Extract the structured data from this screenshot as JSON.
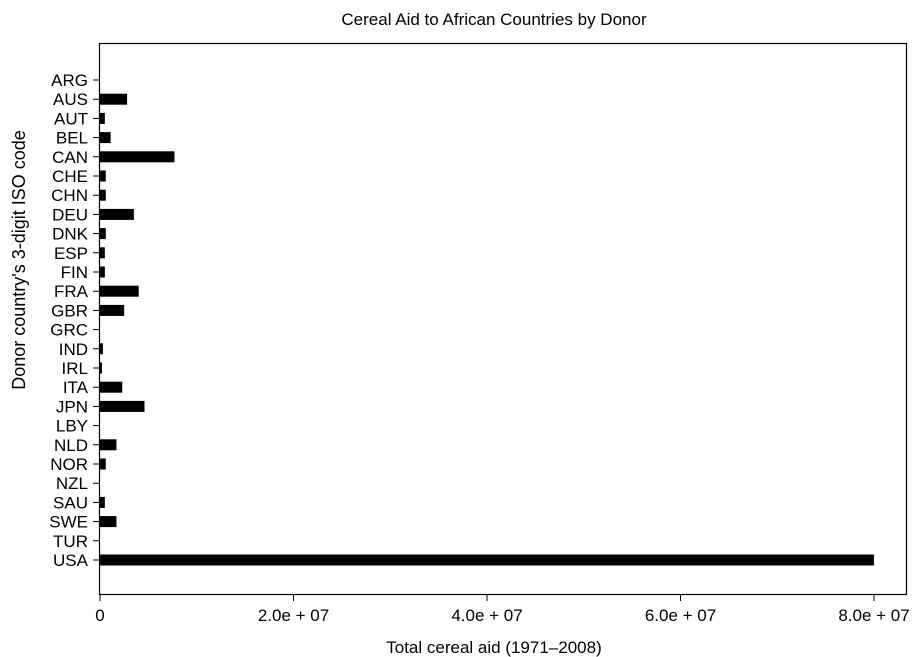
{
  "chart_data": {
    "type": "bar",
    "orientation": "horizontal",
    "title": "Cereal Aid to African Countries by Donor",
    "xlabel": "Total cereal aid (1971–2008)",
    "ylabel": "Donor country's 3-digit ISO code",
    "categories": [
      "ARG",
      "AUS",
      "AUT",
      "BEL",
      "CAN",
      "CHE",
      "CHN",
      "DEU",
      "DNK",
      "ESP",
      "FIN",
      "FRA",
      "GBR",
      "GRC",
      "IND",
      "IRL",
      "ITA",
      "JPN",
      "LBY",
      "NLD",
      "NOR",
      "NZL",
      "SAU",
      "SWE",
      "TUR",
      "USA"
    ],
    "values": [
      0,
      2800000,
      500000,
      1100000,
      7700000,
      600000,
      600000,
      3500000,
      600000,
      500000,
      500000,
      4000000,
      2500000,
      0,
      300000,
      200000,
      2300000,
      4600000,
      0,
      1700000,
      600000,
      0,
      500000,
      1700000,
      0,
      80000000
    ],
    "xlim": [
      0,
      80000000
    ],
    "xticks": [
      0,
      20000000,
      40000000,
      60000000,
      80000000
    ],
    "xtick_labels": [
      "0",
      "2.0e + 07",
      "4.0e + 07",
      "6.0e + 07",
      "8.0e + 07"
    ],
    "bar_color": "#000000",
    "grid": false,
    "legend": "none"
  }
}
